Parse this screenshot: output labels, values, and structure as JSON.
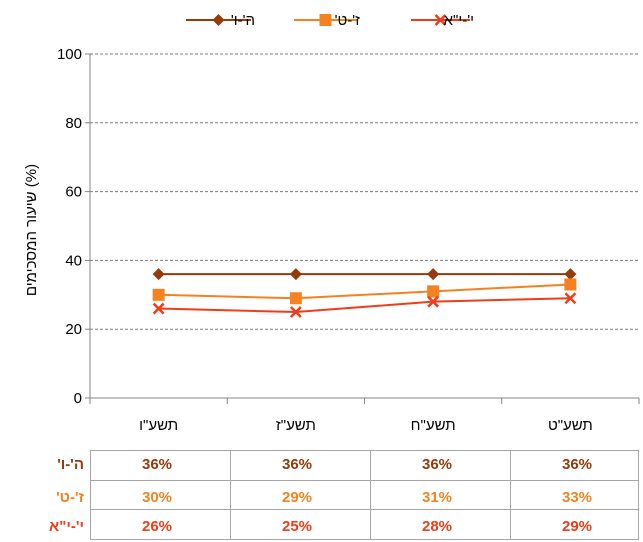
{
  "chart_data": {
    "type": "line",
    "categories": [
      "תשע\"ו",
      "תשע\"ז",
      "תשע\"ח",
      "תשע\"ט"
    ],
    "series": [
      {
        "name": "ה'-ו'",
        "values": [
          36,
          36,
          36,
          36
        ],
        "color": "#953a0b",
        "marker": "diamond"
      },
      {
        "name": "ז'-ט'",
        "values": [
          30,
          29,
          31,
          33
        ],
        "color": "#f58220",
        "marker": "square"
      },
      {
        "name": "י'-י\"א",
        "values": [
          26,
          25,
          28,
          29
        ],
        "color": "#f03c18",
        "marker": "x"
      }
    ],
    "ylabel": "שיעור המסכימים (%)",
    "ylim": [
      0,
      100
    ],
    "yticks": [
      0,
      20,
      40,
      60,
      80,
      100
    ],
    "grid": "horizontal-dashed",
    "legend": "top"
  },
  "table": {
    "rows": [
      {
        "label": "ה'-ו'",
        "values": [
          "36%",
          "36%",
          "36%",
          "36%"
        ],
        "color": "#953a0b"
      },
      {
        "label": "ז'-ט'",
        "values": [
          "30%",
          "29%",
          "31%",
          "33%"
        ],
        "color": "#f58220"
      },
      {
        "label": "י'-י\"א",
        "values": [
          "26%",
          "25%",
          "28%",
          "29%"
        ],
        "color": "#f03c18"
      }
    ]
  }
}
